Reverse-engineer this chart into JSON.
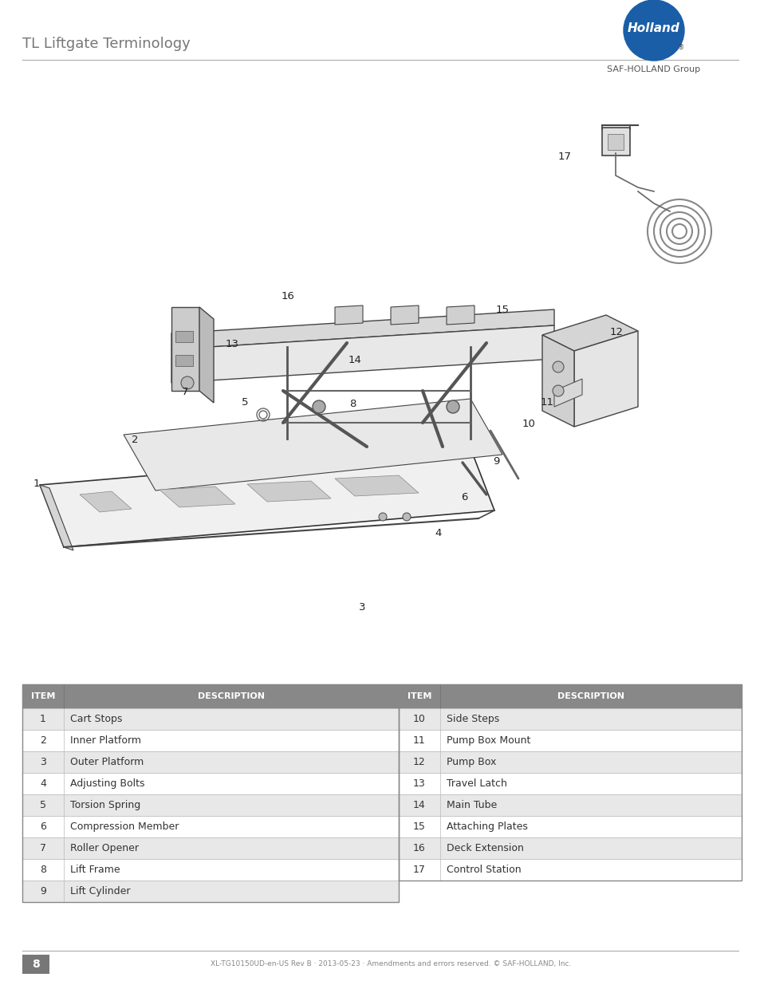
{
  "title": "TL Liftgate Terminology",
  "bg_color": "#ffffff",
  "header_line_color": "#aaaaaa",
  "title_color": "#777777",
  "title_fontsize": 13,
  "logo_circle_color": "#1a5ea8",
  "logo_sub": "SAF-HOLLAND Group",
  "page_number": "8",
  "footer_text": "XL-TG10150UD-en-US Rev B · 2013-05-23 · Amendments and errors reserved. © SAF-HOLLAND, Inc.",
  "table_header_color": "#888888",
  "table_alt_color": "#e8e8e8",
  "table_white_color": "#ffffff",
  "table_border_color": "#aaaaaa",
  "items_left": [
    [
      1,
      "Cart Stops"
    ],
    [
      2,
      "Inner Platform"
    ],
    [
      3,
      "Outer Platform"
    ],
    [
      4,
      "Adjusting Bolts"
    ],
    [
      5,
      "Torsion Spring"
    ],
    [
      6,
      "Compression Member"
    ],
    [
      7,
      "Roller Opener"
    ],
    [
      8,
      "Lift Frame"
    ],
    [
      9,
      "Lift Cylinder"
    ]
  ],
  "items_right": [
    [
      10,
      "Side Steps"
    ],
    [
      11,
      "Pump Box Mount"
    ],
    [
      12,
      "Pump Box"
    ],
    [
      13,
      "Travel Latch"
    ],
    [
      14,
      "Main Tube"
    ],
    [
      15,
      "Attaching Plates"
    ],
    [
      16,
      "Deck Extension"
    ],
    [
      17,
      "Control Station"
    ]
  ]
}
